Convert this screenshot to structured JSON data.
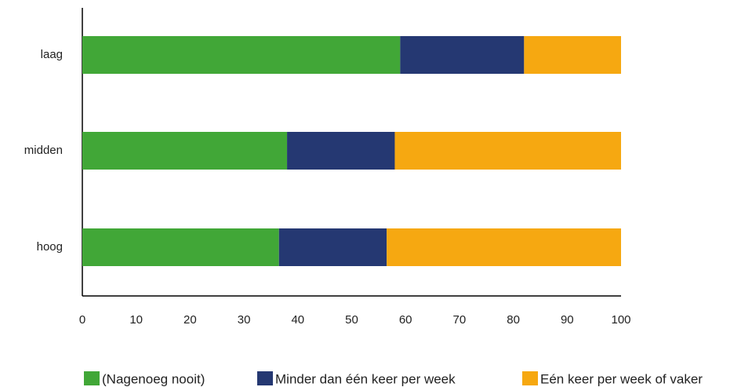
{
  "chart_data": {
    "type": "stacked_barh",
    "categories": [
      "laag",
      "midden",
      "hoog"
    ],
    "series": [
      {
        "name": "(Nagenoeg nooit)",
        "color": "#41a737",
        "values": [
          59,
          38,
          36.5
        ]
      },
      {
        "name": "Minder dan één keer per week",
        "color": "#253872",
        "values": [
          23,
          20,
          20
        ]
      },
      {
        "name": "Eén keer per week of vaker",
        "color": "#f6a811",
        "values": [
          18,
          42,
          43.5
        ]
      }
    ],
    "xlim": [
      0,
      100
    ],
    "xticks": [
      0,
      10,
      20,
      30,
      40,
      50,
      60,
      70,
      80,
      90,
      100
    ],
    "legend": "bottom"
  }
}
